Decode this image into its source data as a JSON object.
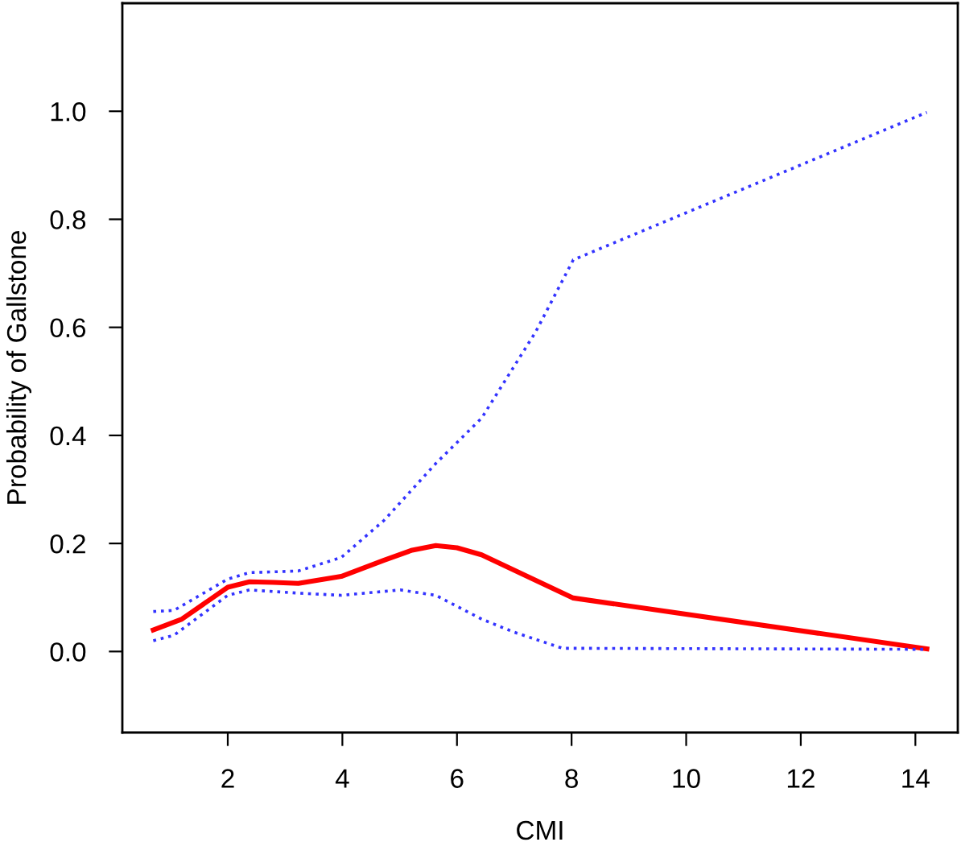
{
  "chart_data": {
    "type": "line",
    "xlabel": "CMI",
    "ylabel": "Probability of Gallstone",
    "xlim": [
      0.16,
      14.74
    ],
    "ylim": [
      -0.15,
      1.2
    ],
    "xticks": [
      2,
      4,
      6,
      8,
      10,
      12,
      14
    ],
    "yticks": [
      {
        "value": 0,
        "label": "0.0"
      },
      {
        "value": 0.2,
        "label": "0.2"
      },
      {
        "value": 0.4,
        "label": "0.4"
      },
      {
        "value": 0.6,
        "label": "0.6"
      },
      {
        "value": 0.8,
        "label": "0.8"
      },
      {
        "value": 1.0,
        "label": "1.0"
      }
    ],
    "grid": false,
    "legend": false,
    "series": [
      {
        "color": "#ff0000",
        "line_style": "solid",
        "x": [
          0.7,
          1.2,
          2.0,
          2.38,
          2.8,
          3.23,
          3.98,
          4.73,
          5.2,
          5.63,
          6.0,
          6.43,
          8.03,
          14.2
        ],
        "values": [
          0.04,
          0.06,
          0.119,
          0.129,
          0.128,
          0.126,
          0.139,
          0.169,
          0.187,
          0.196,
          0.192,
          0.179,
          0.099,
          0.005
        ]
      },
      {
        "color": "#3333ff",
        "line_style": "dotted",
        "x": [
          0.7,
          1.06,
          2.0,
          2.38,
          3.23,
          3.98,
          4.73,
          5.63,
          6.43,
          7.37,
          8.03,
          14.2
        ],
        "values": [
          0.074,
          0.076,
          0.134,
          0.146,
          0.149,
          0.174,
          0.243,
          0.348,
          0.432,
          0.591,
          0.725,
          0.998
        ]
      },
      {
        "color": "#3333ff",
        "line_style": "dotted",
        "x": [
          0.7,
          1.06,
          2.0,
          2.38,
          3.23,
          3.98,
          5.01,
          5.63,
          6.43,
          6.99,
          7.84,
          14.2
        ],
        "values": [
          0.02,
          0.03,
          0.104,
          0.114,
          0.108,
          0.104,
          0.114,
          0.104,
          0.06,
          0.036,
          0.006,
          0.004
        ]
      }
    ]
  }
}
